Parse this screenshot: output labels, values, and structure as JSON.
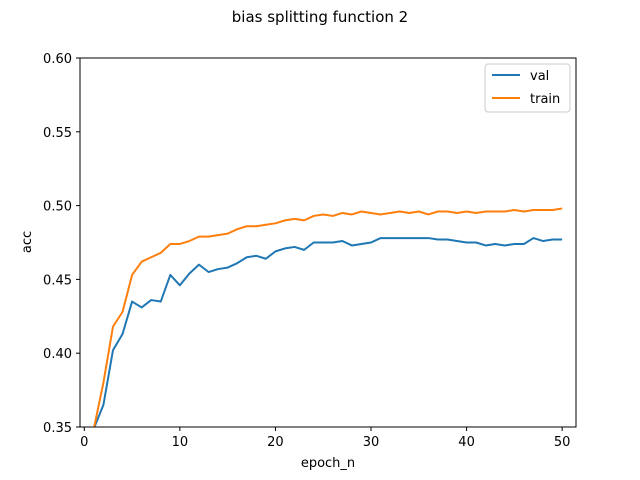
{
  "chart_data": {
    "type": "line",
    "title": "bias splitting function 2",
    "xlabel": "epoch_n",
    "ylabel": "acc",
    "xlim": [
      -0.45,
      51.45
    ],
    "ylim": [
      0.35,
      0.6
    ],
    "xticks": [
      0,
      10,
      20,
      30,
      40,
      50
    ],
    "yticks": [
      0.35,
      0.4,
      0.45,
      0.5,
      0.55,
      0.6
    ],
    "ytick_labels": [
      "0.35",
      "0.40",
      "0.45",
      "0.50",
      "0.55",
      "0.60"
    ],
    "legend": "top-right",
    "grid": false,
    "x": [
      1,
      2,
      3,
      4,
      5,
      6,
      7,
      8,
      9,
      10,
      11,
      12,
      13,
      14,
      15,
      16,
      17,
      18,
      19,
      20,
      21,
      22,
      23,
      24,
      25,
      26,
      27,
      28,
      29,
      30,
      31,
      32,
      33,
      34,
      35,
      36,
      37,
      38,
      39,
      40,
      41,
      42,
      43,
      44,
      45,
      46,
      47,
      48,
      49,
      50
    ],
    "series": [
      {
        "name": "val",
        "color": "#1f77b4",
        "values": [
          0.349,
          0.365,
          0.402,
          0.413,
          0.435,
          0.431,
          0.436,
          0.435,
          0.453,
          0.446,
          0.454,
          0.46,
          0.455,
          0.457,
          0.458,
          0.461,
          0.465,
          0.466,
          0.464,
          0.469,
          0.471,
          0.472,
          0.47,
          0.475,
          0.475,
          0.475,
          0.476,
          0.473,
          0.474,
          0.475,
          0.478,
          0.478,
          0.478,
          0.478,
          0.478,
          0.478,
          0.477,
          0.477,
          0.476,
          0.475,
          0.475,
          0.473,
          0.474,
          0.473,
          0.474,
          0.474,
          0.478,
          0.476,
          0.477,
          0.477
        ]
      },
      {
        "name": "train",
        "color": "#ff7f0e",
        "values": [
          0.349,
          0.38,
          0.418,
          0.428,
          0.453,
          0.462,
          0.465,
          0.468,
          0.474,
          0.474,
          0.476,
          0.479,
          0.479,
          0.48,
          0.481,
          0.484,
          0.486,
          0.486,
          0.487,
          0.488,
          0.49,
          0.491,
          0.49,
          0.493,
          0.494,
          0.493,
          0.495,
          0.494,
          0.496,
          0.495,
          0.494,
          0.495,
          0.496,
          0.495,
          0.496,
          0.494,
          0.496,
          0.496,
          0.495,
          0.496,
          0.495,
          0.496,
          0.496,
          0.496,
          0.497,
          0.496,
          0.497,
          0.497,
          0.497,
          0.498
        ]
      }
    ]
  }
}
